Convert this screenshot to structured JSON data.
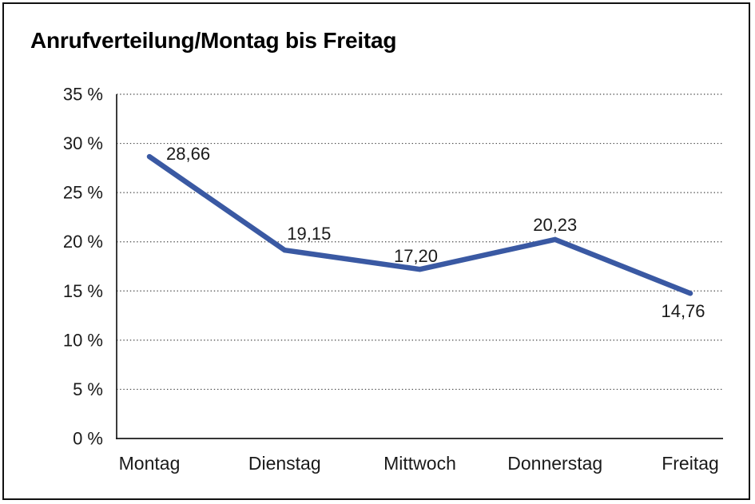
{
  "title": "Anrufverteilung/Montag bis Freitag",
  "colors": {
    "line": "#3A59A3",
    "axis": "#1a1a1a",
    "grid": "#474747",
    "text": "#1a1a1a",
    "background": "#ffffff",
    "border": "#111111"
  },
  "chart_data": {
    "type": "line",
    "title": "Anrufverteilung/Montag bis Freitag",
    "categories": [
      "Montag",
      "Dienstag",
      "Mittwoch",
      "Donnerstag",
      "Freitag"
    ],
    "values": [
      28.66,
      19.15,
      17.2,
      20.23,
      14.76
    ],
    "point_labels": [
      "28,66",
      "19,15",
      "17,20",
      "20,23",
      "14,76"
    ],
    "xlabel": "",
    "ylabel": "",
    "ylim": [
      0,
      35
    ],
    "ytick_step": 5,
    "ytick_labels": [
      "0 %",
      "5 %",
      "10 %",
      "15 %",
      "20 %",
      "25 %",
      "30 %",
      "35 %"
    ],
    "grid": "horizontal-dotted",
    "legend": "none",
    "line_width": 6.5
  }
}
